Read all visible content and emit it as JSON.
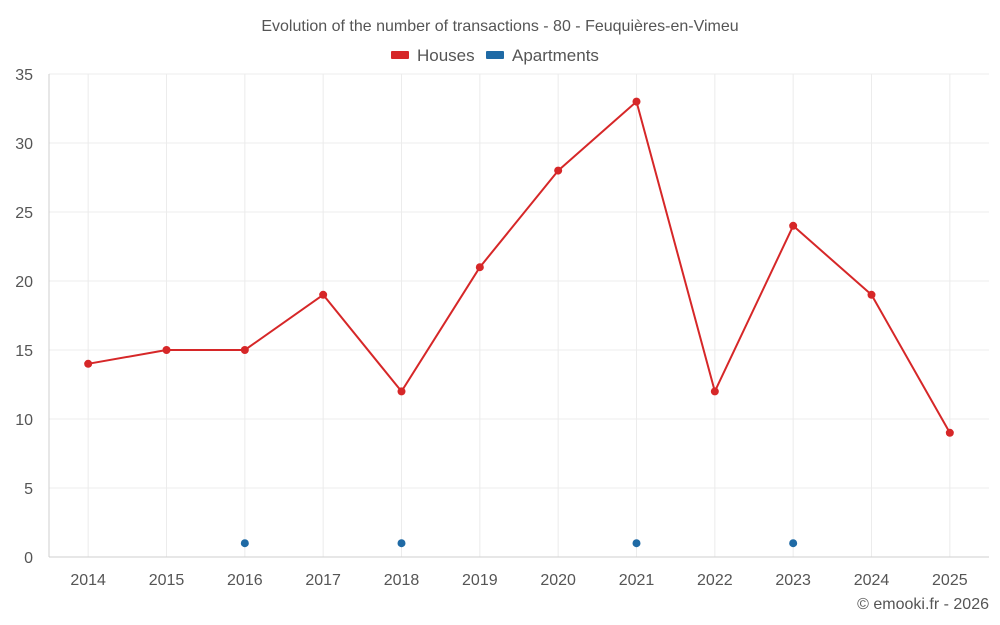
{
  "chart_data": {
    "type": "line",
    "title": "Evolution of the number of transactions - 80 - Feuquières-en-Vimeu",
    "categories": [
      "2014",
      "2015",
      "2016",
      "2017",
      "2018",
      "2019",
      "2020",
      "2021",
      "2022",
      "2023",
      "2024",
      "2025"
    ],
    "ylim": [
      0,
      35
    ],
    "yticks": [
      0,
      5,
      10,
      15,
      20,
      25,
      30,
      35
    ],
    "grid": true,
    "legend_position": "top-center",
    "series": [
      {
        "name": "Houses",
        "color": "#d62728",
        "line": true,
        "values": [
          14,
          15,
          15,
          19,
          12,
          21,
          28,
          33,
          12,
          24,
          19,
          9
        ]
      },
      {
        "name": "Apartments",
        "color": "#1f6aa5",
        "line": false,
        "values": [
          null,
          null,
          1,
          null,
          1,
          null,
          null,
          1,
          null,
          1,
          null,
          null
        ]
      }
    ],
    "credit": "© emooki.fr - 2026"
  }
}
